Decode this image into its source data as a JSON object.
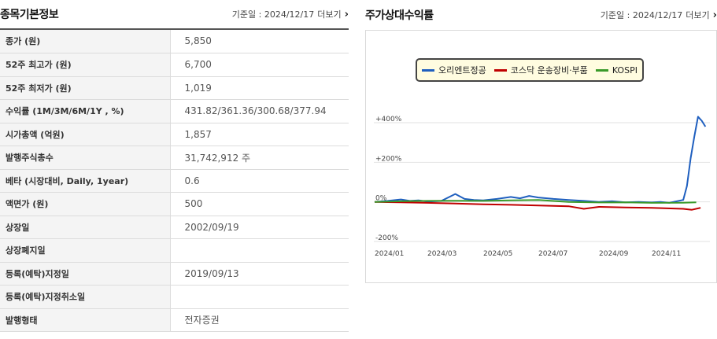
{
  "left": {
    "title": "종목기본정보",
    "base_label": "기준일 : 2024/12/17",
    "more_label": "더보기",
    "rows": [
      {
        "label": "종가 (원)",
        "value": "5,850"
      },
      {
        "label": "52주 최고가 (원)",
        "value": "6,700"
      },
      {
        "label": "52주 최저가 (원)",
        "value": "1,019"
      },
      {
        "label": "수익률 (1M/3M/6M/1Y , %)",
        "value": "431.82/361.36/300.68/377.94"
      },
      {
        "label": "시가총액 (억원)",
        "value": "1,857"
      },
      {
        "label": "발행주식총수",
        "value": "31,742,912 주"
      },
      {
        "label": "베타 (시장대비, Daily, 1year)",
        "value": "0.6"
      },
      {
        "label": "액면가 (원)",
        "value": "500"
      },
      {
        "label": "상장일",
        "value": "2002/09/19"
      },
      {
        "label": "상장폐지일",
        "value": ""
      },
      {
        "label": "등록(예탁)지정일",
        "value": "2019/09/13"
      },
      {
        "label": "등록(예탁)지정취소일",
        "value": ""
      },
      {
        "label": "발행형태",
        "value": "전자증권"
      }
    ]
  },
  "right": {
    "title": "주가상대수익률",
    "base_label": "기준일 : 2024/12/17",
    "more_label": "더보기"
  },
  "icons": {
    "more": "chevron-right-icon"
  },
  "chart_data": {
    "type": "line",
    "title": "",
    "xlabel": "",
    "ylabel": "",
    "ylim": [
      -200,
      500
    ],
    "y_ticks": [
      "+400%",
      "+200%",
      "0%",
      "-200%"
    ],
    "x_ticks": [
      "2024/01",
      "2024/03",
      "2024/05",
      "2024/07",
      "2024/09",
      "2024/11"
    ],
    "legend_position": "top",
    "grid": true,
    "series": [
      {
        "name": "오리엔트정공",
        "color": "#1f5fbf",
        "points": [
          [
            "2024/01",
            0
          ],
          [
            "2024/01",
            5
          ],
          [
            "2024/02",
            12
          ],
          [
            "2024/02",
            5
          ],
          [
            "2024/02",
            8
          ],
          [
            "2024/03",
            2
          ],
          [
            "2024/03",
            5
          ],
          [
            "2024/04",
            40
          ],
          [
            "2024/04",
            15
          ],
          [
            "2024/04",
            10
          ],
          [
            "2024/05",
            8
          ],
          [
            "2024/05",
            15
          ],
          [
            "2024/06",
            25
          ],
          [
            "2024/06",
            18
          ],
          [
            "2024/06",
            30
          ],
          [
            "2024/07",
            22
          ],
          [
            "2024/07",
            15
          ],
          [
            "2024/08",
            10
          ],
          [
            "2024/08",
            5
          ],
          [
            "2024/09",
            0
          ],
          [
            "2024/09",
            3
          ],
          [
            "2024/10",
            -2
          ],
          [
            "2024/10",
            0
          ],
          [
            "2024/11",
            -3
          ],
          [
            "2024/11",
            0
          ],
          [
            "2024/11",
            -5
          ],
          [
            "2024/12",
            10
          ],
          [
            "2024/12",
            80
          ],
          [
            "2024/12",
            220
          ],
          [
            "2024/12",
            330
          ],
          [
            "2024/12",
            430
          ],
          [
            "2024/12",
            410
          ],
          [
            "2024/12",
            380
          ]
        ]
      },
      {
        "name": "코스닥 운송장비·부품",
        "color": "#c00000",
        "points": [
          [
            "2024/01",
            0
          ],
          [
            "2024/02",
            -2
          ],
          [
            "2024/03",
            -5
          ],
          [
            "2024/04",
            -8
          ],
          [
            "2024/05",
            -12
          ],
          [
            "2024/06",
            -15
          ],
          [
            "2024/07",
            -18
          ],
          [
            "2024/08",
            -22
          ],
          [
            "2024/08",
            -35
          ],
          [
            "2024/09",
            -25
          ],
          [
            "2024/10",
            -28
          ],
          [
            "2024/11",
            -30
          ],
          [
            "2024/12",
            -35
          ],
          [
            "2024/12",
            -40
          ],
          [
            "2024/12",
            -30
          ]
        ]
      },
      {
        "name": "KOSPI",
        "color": "#3a9a2a",
        "points": [
          [
            "2024/01",
            0
          ],
          [
            "2024/02",
            3
          ],
          [
            "2024/03",
            5
          ],
          [
            "2024/04",
            6
          ],
          [
            "2024/05",
            5
          ],
          [
            "2024/06",
            8
          ],
          [
            "2024/07",
            10
          ],
          [
            "2024/08",
            0
          ],
          [
            "2024/09",
            -3
          ],
          [
            "2024/10",
            -2
          ],
          [
            "2024/11",
            -5
          ],
          [
            "2024/12",
            -4
          ],
          [
            "2024/12",
            -2
          ]
        ]
      }
    ]
  }
}
